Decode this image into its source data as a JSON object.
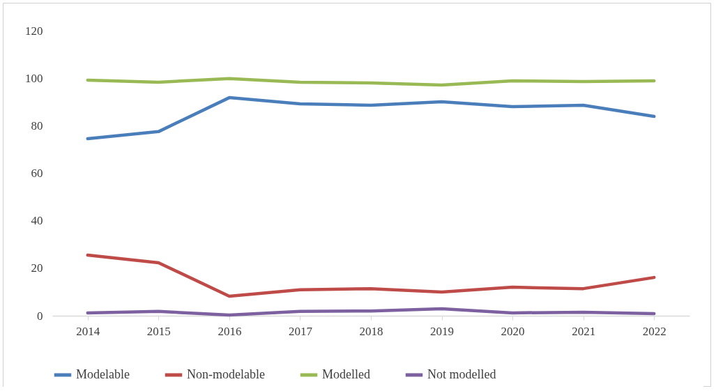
{
  "chart_data": {
    "type": "line",
    "categories": [
      "2014",
      "2015",
      "2016",
      "2017",
      "2018",
      "2019",
      "2020",
      "2021",
      "2022"
    ],
    "series": [
      {
        "name": "Modelable",
        "color": "#4a7ebb",
        "values": [
          74.5,
          77.5,
          91.8,
          89.2,
          88.6,
          90.1,
          88,
          88.6,
          83.9
        ]
      },
      {
        "name": "Non-modelable",
        "color": "#be4b48",
        "values": [
          25.5,
          22.3,
          8.2,
          10.9,
          11.4,
          10,
          12,
          11.4,
          16.1
        ]
      },
      {
        "name": "Modelled",
        "color": "#98b954",
        "values": [
          99.2,
          98.3,
          99.8,
          98.3,
          98,
          97.1,
          98.9,
          98.6,
          98.9
        ]
      },
      {
        "name": "Not modelled",
        "color": "#7d60a0",
        "values": [
          1.2,
          1.8,
          0.3,
          1.8,
          2,
          2.9,
          1.2,
          1.5,
          0.9
        ]
      }
    ],
    "ylim": [
      0,
      120
    ],
    "yticks": [
      0,
      20,
      40,
      60,
      80,
      100,
      120
    ],
    "grid": false,
    "legend": "bottom",
    "marker": "none",
    "line_style": "solid"
  }
}
